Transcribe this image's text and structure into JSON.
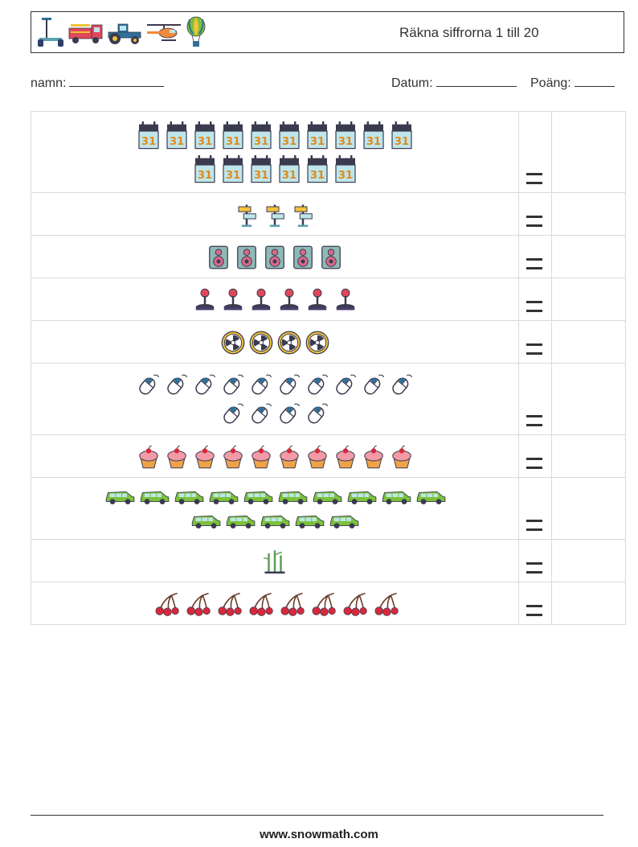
{
  "header": {
    "title": "Räkna siffrorna 1 till 20",
    "icons": [
      "segway-icon",
      "fire-truck-icon",
      "tractor-icon",
      "helicopter-icon",
      "hot-air-balloon-icon"
    ]
  },
  "fields": {
    "name_label": "namn:",
    "date_label": "Datum:",
    "score_label": "Poäng:"
  },
  "equals_sign": "=",
  "rows": [
    {
      "icon": "calendar-icon",
      "count": 16
    },
    {
      "icon": "signpost-icon",
      "count": 3
    },
    {
      "icon": "speaker-icon",
      "count": 5
    },
    {
      "icon": "joystick-icon",
      "count": 6
    },
    {
      "icon": "radiation-icon",
      "count": 4
    },
    {
      "icon": "computer-mouse-icon",
      "count": 14
    },
    {
      "icon": "cupcake-icon",
      "count": 10
    },
    {
      "icon": "car-icon",
      "count": 15
    },
    {
      "icon": "bamboo-icon",
      "count": 1
    },
    {
      "icon": "cherries-icon",
      "count": 8
    }
  ],
  "footer": {
    "url": "www.snowmath.com"
  }
}
